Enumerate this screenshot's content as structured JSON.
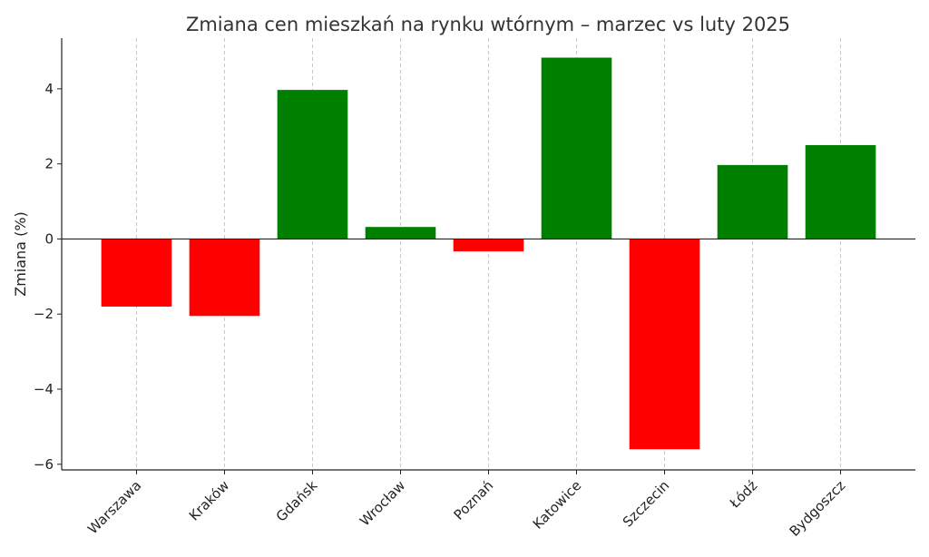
{
  "chart_data": {
    "type": "bar",
    "title": "Zmiana cen mieszkań na rynku wtórnym – marzec vs luty 2025",
    "xlabel": "",
    "ylabel": "Zmiana (%)",
    "categories": [
      "Warszawa",
      "Kraków",
      "Gdańsk",
      "Wrocław",
      "Poznań",
      "Katowice",
      "Szczecin",
      "Łódź",
      "Bydgoszcz"
    ],
    "values": [
      -1.8,
      -2.05,
      3.97,
      0.32,
      -0.33,
      4.83,
      -5.6,
      1.97,
      2.5
    ],
    "ylim": [
      -6.15,
      5.35
    ],
    "yticks": [
      4,
      2,
      0,
      -2,
      -4,
      -6
    ],
    "ytick_labels": [
      "4",
      "2",
      "0",
      "−2",
      "−4",
      "−6"
    ],
    "grid": "x-dashed",
    "colors": {
      "positive": "#008000",
      "negative": "#ff0000"
    }
  }
}
